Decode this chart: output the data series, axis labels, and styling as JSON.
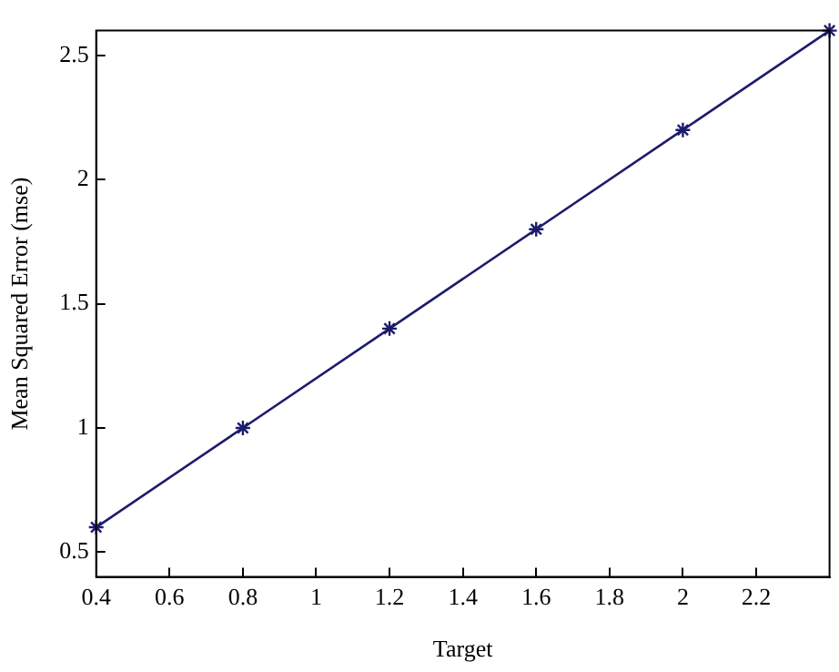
{
  "chart_data": {
    "type": "line",
    "xlabel": "Target",
    "ylabel": "Mean Squared Error (mse)",
    "x": [
      0.4,
      0.8,
      1.2,
      1.6,
      2.0,
      2.4
    ],
    "series": [
      {
        "color": "#1c1c6b",
        "values": [
          0.6,
          1.0,
          1.4,
          1.8,
          2.2,
          2.6
        ]
      }
    ],
    "xlim": [
      0.4,
      2.4
    ],
    "xticks": [
      0.4,
      0.6,
      0.8,
      1,
      1.2,
      1.4,
      1.6,
      1.8,
      2,
      2.2
    ],
    "ylim": [
      0.4,
      2.6
    ],
    "yticks": [
      0.5,
      1,
      1.5,
      2,
      2.5
    ],
    "grid": false,
    "legend": false,
    "marker": "cross",
    "line_style": "solid"
  }
}
